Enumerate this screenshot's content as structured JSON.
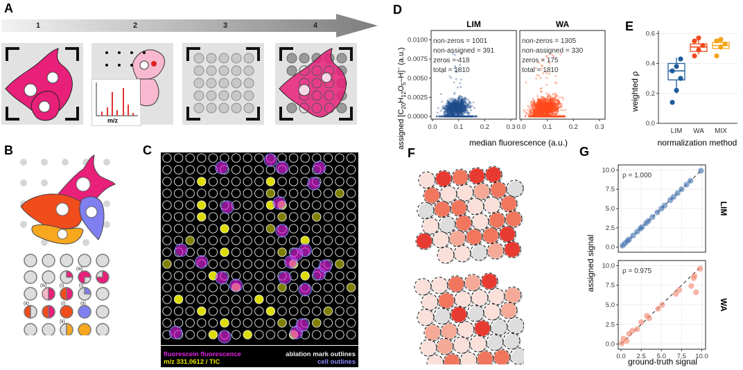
{
  "panels": {
    "A": "A",
    "B": "B",
    "C": "C",
    "D": "D",
    "E": "E",
    "F": "F",
    "G": "G"
  },
  "panel_a": {
    "steps": [
      "1",
      "2",
      "3",
      "4"
    ],
    "spectrum_axis_label": "m/z"
  },
  "panel_b": {
    "case_labels": [
      "(iii)",
      "(i)",
      "(iii)",
      "(i)",
      "(i)",
      "(ii)",
      "(ii)",
      "(ii)"
    ]
  },
  "panel_c": {
    "legend": {
      "fluorescence": "fluorescein fluorescence",
      "mz": "m/z 331.0612 / TIC",
      "ablation": "ablation mark outlines",
      "cells": "cell outlines"
    },
    "colors": {
      "fluorescence": "#e020e0",
      "mz": "#e8e800",
      "cells": "#8080ff"
    }
  },
  "panel_d": {
    "xlabel": "median fluorescence (a.u.)",
    "ylabel_parts": {
      "pre": "assigned [C",
      "s1": "20",
      "m1": "H",
      "s2": "12",
      "m2": "O",
      "s3": "5",
      "post": "–H]",
      "sup": "−",
      "end": " (a.u.)"
    },
    "facets": [
      {
        "name": "LIM",
        "non_zeros": "non-zeros = 1001",
        "non_assigned": "non-assigned = 391",
        "zeros": "zeros = 418",
        "total": "total = 1810"
      },
      {
        "name": "WA",
        "non_zeros": "non-zeros = 1305",
        "non_assigned": "non-assigned = 330",
        "zeros": "zeros = 175",
        "total": "total = 1810"
      }
    ],
    "y_ticks": [
      "0.0000",
      "0.0025",
      "0.0050",
      "0.0075",
      "0.0100"
    ],
    "x_ticks": [
      "0.0",
      "0.1",
      "0.2",
      "0.3"
    ]
  },
  "panel_e": {
    "xlabel": "normalization method",
    "ylabel": "weighted ρ",
    "y_ticks": [
      "0.0",
      "0.2",
      "0.4",
      "0.6"
    ]
  },
  "panel_g": {
    "xlabel": "ground-truth signal",
    "ylabel": "assigned signal",
    "ticks": [
      "0.0",
      "2.5",
      "5.0",
      "7.5",
      "10.0"
    ],
    "facets": [
      {
        "name": "LIM",
        "rho": "ρ = 1.000"
      },
      {
        "name": "WA",
        "rho": "ρ = 0.975"
      }
    ]
  },
  "chart_data": [
    {
      "type": "scatter",
      "title": "LIM",
      "xlabel": "median fluorescence (a.u.)",
      "ylabel": "assigned [C20H12O5–H]− (a.u.)",
      "xlim": [
        0,
        0.3
      ],
      "ylim": [
        0,
        0.0105
      ],
      "annotations": [
        "non-zeros = 1001",
        "non-assigned = 391",
        "zeros = 418",
        "total = 1810"
      ],
      "color": "#1f4e8c"
    },
    {
      "type": "scatter",
      "title": "WA",
      "xlabel": "median fluorescence (a.u.)",
      "xlim": [
        0,
        0.3
      ],
      "ylim": [
        0,
        0.0105
      ],
      "annotations": [
        "non-zeros = 1305",
        "non-assigned = 330",
        "zeros = 175",
        "total = 1810"
      ],
      "color": "#ff4a1c"
    },
    {
      "type": "box",
      "xlabel": "normalization method",
      "ylabel": "weighted ρ",
      "ylim": [
        0,
        0.62
      ],
      "categories": [
        "LIM",
        "WA",
        "MIX"
      ],
      "series": [
        {
          "name": "LIM",
          "color": "#1f5c9c",
          "q1": 0.29,
          "median": 0.35,
          "q3": 0.4,
          "whisker_low": 0.2,
          "whisker_high": 0.44,
          "points": [
            0.14,
            0.22,
            0.3,
            0.35,
            0.38,
            0.43
          ]
        },
        {
          "name": "WA",
          "color": "#f24a1e",
          "q1": 0.48,
          "median": 0.51,
          "q3": 0.53,
          "whisker_low": 0.46,
          "whisker_high": 0.56,
          "points": [
            0.45,
            0.49,
            0.52,
            0.55,
            0.57
          ]
        },
        {
          "name": "MIX",
          "color": "#f4a41a",
          "q1": 0.5,
          "median": 0.52,
          "q3": 0.54,
          "whisker_low": 0.49,
          "whisker_high": 0.56,
          "points": [
            0.45,
            0.51,
            0.53,
            0.55,
            0.56
          ]
        }
      ]
    },
    {
      "type": "scatter",
      "title": "LIM",
      "xlabel": "ground-truth signal",
      "ylabel": "assigned signal",
      "xlim": [
        0,
        10.3
      ],
      "ylim": [
        -0.3,
        10.3
      ],
      "annotation": "ρ = 1.000",
      "x": [
        0.2,
        0.5,
        0.8,
        1.0,
        1.5,
        2.0,
        2.4,
        2.6,
        3.1,
        3.4,
        3.9,
        4.5,
        5.0,
        5.4,
        6.1,
        6.5,
        7.0,
        7.5,
        8.1,
        8.6,
        9.9
      ],
      "y": [
        0.2,
        0.5,
        0.8,
        1.0,
        1.5,
        2.0,
        2.4,
        2.6,
        3.1,
        3.4,
        3.9,
        4.5,
        5.0,
        5.4,
        6.1,
        6.5,
        7.0,
        7.5,
        8.1,
        8.6,
        9.9
      ]
    },
    {
      "type": "scatter",
      "title": "WA",
      "xlabel": "ground-truth signal",
      "ylabel": "assigned signal",
      "xlim": [
        0,
        10.3
      ],
      "ylim": [
        -0.3,
        10.3
      ],
      "annotation": "ρ = 0.975",
      "x": [
        0.1,
        0.3,
        0.7,
        1.0,
        1.4,
        2.0,
        2.5,
        3.2,
        3.5,
        4.6,
        5.1,
        6.8,
        7.2,
        8.7,
        9.0,
        9.1,
        9.3,
        9.8
      ],
      "y": [
        0.1,
        0.7,
        0.4,
        1.3,
        1.7,
        1.9,
        2.8,
        3.6,
        3.3,
        4.5,
        5.0,
        6.4,
        6.9,
        7.4,
        8.4,
        8.7,
        6.6,
        9.6
      ]
    }
  ]
}
